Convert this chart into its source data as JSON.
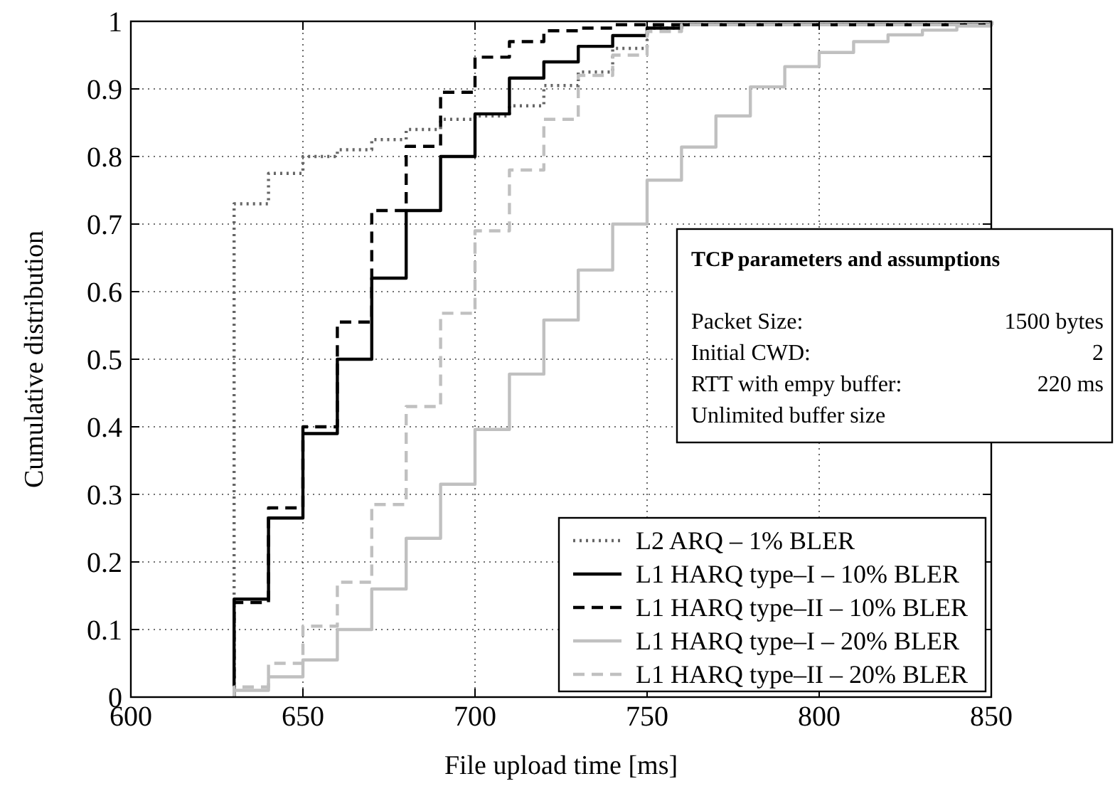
{
  "chart_data": {
    "type": "step",
    "xlabel": "File upload time [ms]",
    "ylabel": "Cumulative distribution",
    "xlim": [
      600,
      850
    ],
    "xticks": [
      600,
      650,
      700,
      750,
      800,
      850
    ],
    "ylim": [
      0,
      1
    ],
    "yticks": [
      0,
      0.1,
      0.2,
      0.3,
      0.4,
      0.5,
      0.6,
      0.7,
      0.8,
      0.9,
      1
    ],
    "grid": true,
    "legend": "bottom right",
    "series": [
      {
        "name": "L2 ARQ – 1% BLER",
        "color": "#666666",
        "line_style": "dotted",
        "x": [
          630,
          630,
          640,
          650,
          660,
          670,
          680,
          690,
          700,
          710,
          720,
          730,
          740,
          750,
          760,
          850
        ],
        "values": [
          0,
          0.73,
          0.775,
          0.8,
          0.81,
          0.825,
          0.84,
          0.855,
          0.86,
          0.875,
          0.905,
          0.925,
          0.96,
          0.99,
          0.995,
          1
        ]
      },
      {
        "name": "L1 HARQ type–I – 10% BLER",
        "color": "#000000",
        "line_style": "solid",
        "x": [
          630,
          630,
          640,
          650,
          660,
          670,
          680,
          690,
          700,
          710,
          720,
          730,
          740,
          750,
          760,
          850
        ],
        "values": [
          0,
          0.145,
          0.265,
          0.39,
          0.5,
          0.62,
          0.72,
          0.8,
          0.863,
          0.916,
          0.94,
          0.963,
          0.979,
          0.99,
          0.995,
          1
        ]
      },
      {
        "name": "L1 HARQ type–II – 10% BLER",
        "color": "#000000",
        "line_style": "dashed",
        "x": [
          630,
          630,
          640,
          650,
          660,
          670,
          680,
          690,
          700,
          710,
          720,
          730,
          740,
          850
        ],
        "values": [
          0,
          0.14,
          0.28,
          0.4,
          0.555,
          0.72,
          0.815,
          0.895,
          0.947,
          0.97,
          0.986,
          0.99,
          0.995,
          1
        ]
      },
      {
        "name": "L1 HARQ type–I – 20% BLER",
        "color": "#c0c0c0",
        "line_style": "solid",
        "x": [
          630,
          630,
          640,
          650,
          660,
          670,
          680,
          690,
          700,
          710,
          720,
          730,
          740,
          750,
          760,
          770,
          780,
          790,
          800,
          810,
          820,
          830,
          840,
          850
        ],
        "values": [
          0,
          0.01,
          0.03,
          0.055,
          0.1,
          0.16,
          0.235,
          0.315,
          0.396,
          0.478,
          0.558,
          0.632,
          0.7,
          0.765,
          0.814,
          0.86,
          0.903,
          0.933,
          0.954,
          0.97,
          0.98,
          0.987,
          0.993,
          0.993
        ]
      },
      {
        "name": "L1 HARQ type–II – 20% BLER",
        "color": "#c0c0c0",
        "line_style": "dashed",
        "x": [
          630,
          630,
          640,
          650,
          660,
          670,
          680,
          690,
          700,
          710,
          720,
          730,
          740,
          750,
          760,
          850
        ],
        "values": [
          0,
          0.015,
          0.05,
          0.105,
          0.17,
          0.285,
          0.43,
          0.568,
          0.69,
          0.78,
          0.855,
          0.92,
          0.95,
          0.985,
          0.995,
          1
        ]
      }
    ],
    "annotations": [
      "TCP parameters and assumptions",
      "Packet Size:",
      "1500 bytes",
      "Initial CWD:",
      "2",
      "RTT with empy buffer:",
      "220 ms",
      "Unlimited buffer size"
    ]
  }
}
